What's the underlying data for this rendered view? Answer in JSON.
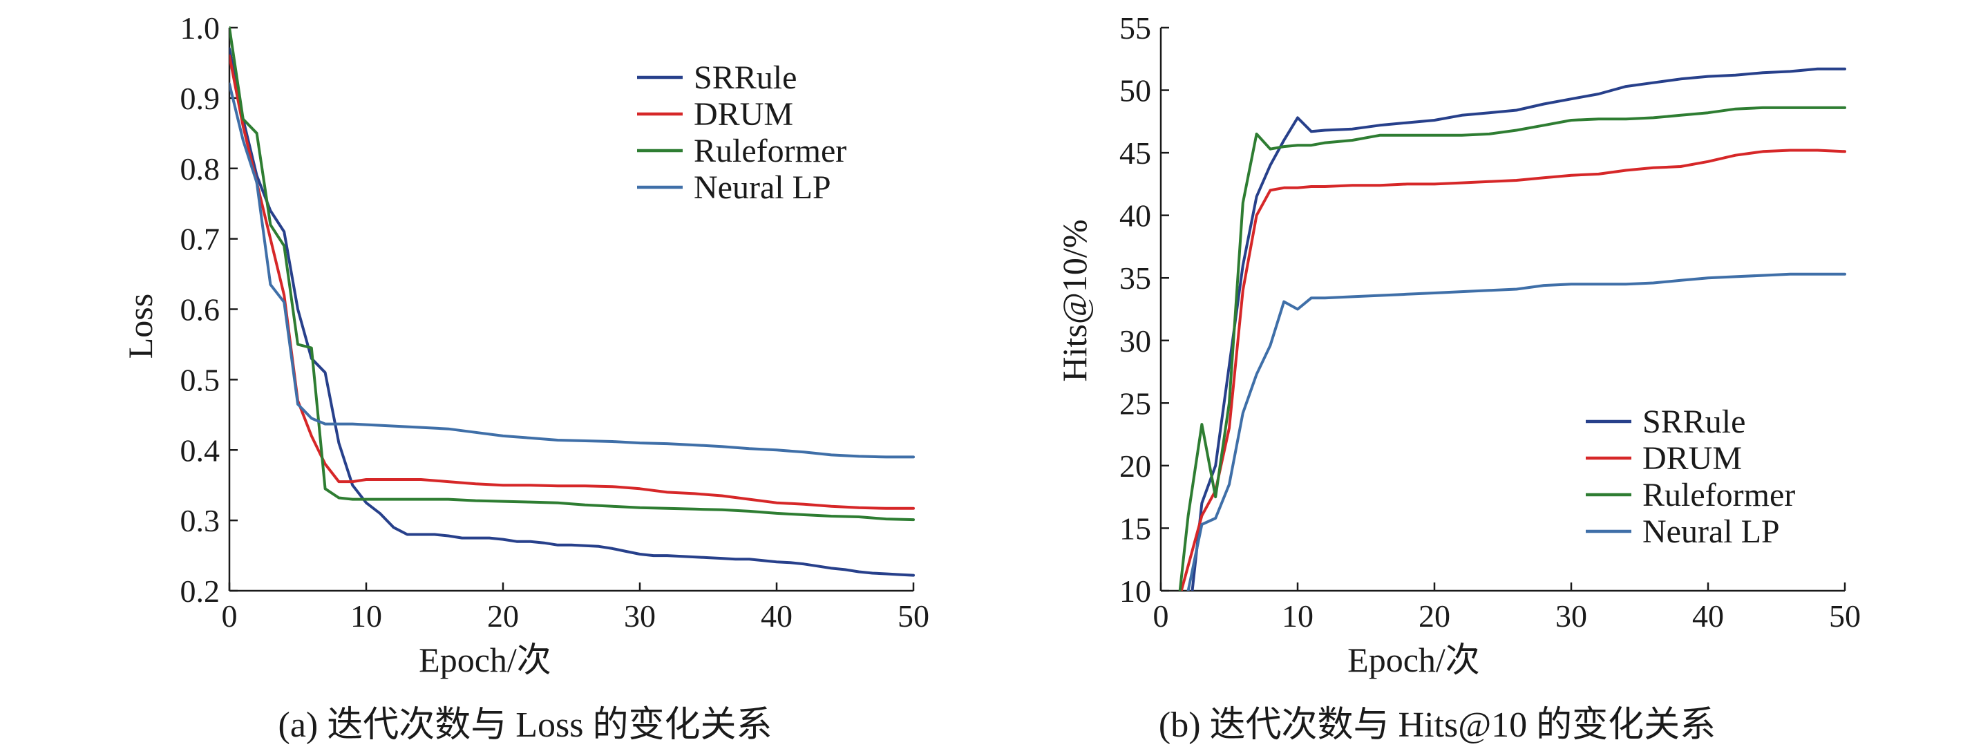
{
  "chart_data": [
    {
      "type": "line",
      "panel": "a",
      "title": "",
      "caption": "(a) 迭代次数与 Loss 的变化关系",
      "xlabel": "Epoch/次",
      "ylabel": "Loss",
      "xlim": [
        0,
        50
      ],
      "ylim": [
        0.2,
        1.0
      ],
      "xticks": [
        "0",
        "10",
        "20",
        "30",
        "40",
        "50"
      ],
      "yticks": [
        "0.2",
        "0.3",
        "0.4",
        "0.5",
        "0.6",
        "0.7",
        "0.8",
        "0.9",
        "1.0"
      ],
      "legend_position": "top-right",
      "grid": false,
      "series": [
        {
          "name": "SRRule",
          "color": "#27408b",
          "x": [
            0,
            1,
            2,
            3,
            4,
            5,
            6,
            7,
            8,
            9,
            10,
            11,
            12,
            13,
            14,
            15,
            16,
            17,
            18,
            19,
            20,
            21,
            22,
            23,
            24,
            25,
            26,
            27,
            28,
            29,
            30,
            31,
            32,
            33,
            34,
            35,
            36,
            37,
            38,
            39,
            40,
            41,
            42,
            43,
            44,
            45,
            46,
            47,
            48,
            49,
            50
          ],
          "y": [
            0.97,
            0.87,
            0.79,
            0.74,
            0.71,
            0.6,
            0.53,
            0.51,
            0.41,
            0.35,
            0.325,
            0.31,
            0.29,
            0.28,
            0.28,
            0.28,
            0.278,
            0.275,
            0.275,
            0.275,
            0.273,
            0.27,
            0.27,
            0.268,
            0.265,
            0.265,
            0.264,
            0.263,
            0.26,
            0.256,
            0.252,
            0.25,
            0.25,
            0.249,
            0.248,
            0.247,
            0.246,
            0.245,
            0.245,
            0.243,
            0.241,
            0.24,
            0.238,
            0.235,
            0.232,
            0.23,
            0.227,
            0.225,
            0.224,
            0.223,
            0.222
          ]
        },
        {
          "name": "DRUM",
          "color": "#d62728",
          "x": [
            0,
            1,
            2,
            3,
            4,
            5,
            6,
            7,
            8,
            9,
            10,
            12,
            14,
            16,
            18,
            20,
            22,
            24,
            26,
            28,
            30,
            32,
            34,
            36,
            38,
            40,
            42,
            44,
            46,
            48,
            50
          ],
          "y": [
            0.96,
            0.86,
            0.78,
            0.7,
            0.62,
            0.47,
            0.42,
            0.38,
            0.355,
            0.355,
            0.358,
            0.358,
            0.358,
            0.355,
            0.352,
            0.35,
            0.35,
            0.349,
            0.349,
            0.348,
            0.345,
            0.34,
            0.338,
            0.335,
            0.33,
            0.325,
            0.323,
            0.32,
            0.318,
            0.317,
            0.317
          ]
        },
        {
          "name": "Ruleformer",
          "color": "#2e7d32",
          "x": [
            0,
            1,
            2,
            3,
            4,
            5,
            6,
            7,
            8,
            9,
            10,
            12,
            14,
            16,
            18,
            20,
            22,
            24,
            26,
            28,
            30,
            32,
            34,
            36,
            38,
            40,
            42,
            44,
            46,
            48,
            50
          ],
          "y": [
            1.0,
            0.87,
            0.85,
            0.72,
            0.69,
            0.55,
            0.545,
            0.345,
            0.332,
            0.33,
            0.33,
            0.33,
            0.33,
            0.33,
            0.328,
            0.327,
            0.326,
            0.325,
            0.322,
            0.32,
            0.318,
            0.317,
            0.316,
            0.315,
            0.313,
            0.31,
            0.308,
            0.306,
            0.305,
            0.302,
            0.301
          ]
        },
        {
          "name": "Neural LP",
          "color": "#3f6fa8",
          "x": [
            0,
            1,
            2,
            3,
            4,
            5,
            6,
            7,
            8,
            9,
            10,
            12,
            14,
            16,
            18,
            20,
            22,
            24,
            26,
            28,
            30,
            32,
            34,
            36,
            38,
            40,
            42,
            44,
            46,
            48,
            50
          ],
          "y": [
            0.92,
            0.84,
            0.78,
            0.635,
            0.61,
            0.465,
            0.445,
            0.437,
            0.437,
            0.437,
            0.436,
            0.434,
            0.432,
            0.43,
            0.425,
            0.42,
            0.417,
            0.414,
            0.413,
            0.412,
            0.41,
            0.409,
            0.407,
            0.405,
            0.402,
            0.4,
            0.397,
            0.393,
            0.391,
            0.39,
            0.39
          ]
        }
      ]
    },
    {
      "type": "line",
      "panel": "b",
      "title": "",
      "caption": "(b) 迭代次数与 Hits@10 的变化关系",
      "xlabel": "Epoch/次",
      "ylabel": "Hits@10/%",
      "xlim": [
        0,
        50
      ],
      "ylim": [
        10,
        55
      ],
      "xticks": [
        "0",
        "10",
        "20",
        "30",
        "40",
        "50"
      ],
      "yticks": [
        "10",
        "15",
        "20",
        "25",
        "30",
        "35",
        "40",
        "45",
        "50",
        "55"
      ],
      "legend_position": "bottom-right",
      "grid": false,
      "series": [
        {
          "name": "SRRule",
          "color": "#27408b",
          "x": [
            2.3,
            3,
            4,
            5,
            6,
            7,
            8,
            9,
            10,
            11,
            12,
            14,
            16,
            18,
            20,
            22,
            24,
            26,
            28,
            30,
            32,
            34,
            36,
            38,
            40,
            42,
            44,
            46,
            48,
            50
          ],
          "y": [
            10,
            17,
            20,
            28,
            36,
            41.5,
            44,
            46,
            47.8,
            46.7,
            46.8,
            46.9,
            47.2,
            47.4,
            47.6,
            48.0,
            48.2,
            48.4,
            48.9,
            49.3,
            49.7,
            50.3,
            50.6,
            50.9,
            51.1,
            51.2,
            51.4,
            51.5,
            51.7,
            51.7
          ]
        },
        {
          "name": "DRUM",
          "color": "#d62728",
          "x": [
            1.5,
            2,
            3,
            4,
            5,
            6,
            7,
            8,
            9,
            10,
            11,
            12,
            14,
            16,
            18,
            20,
            22,
            24,
            26,
            28,
            30,
            32,
            34,
            36,
            38,
            40,
            42,
            44,
            46,
            48,
            50
          ],
          "y": [
            10,
            12,
            16,
            18,
            23,
            34,
            40,
            42,
            42.2,
            42.2,
            42.3,
            42.3,
            42.4,
            42.4,
            42.5,
            42.5,
            42.6,
            42.7,
            42.8,
            43.0,
            43.2,
            43.3,
            43.6,
            43.8,
            43.9,
            44.3,
            44.8,
            45.1,
            45.2,
            45.2,
            45.1
          ]
        },
        {
          "name": "Ruleformer",
          "color": "#2e7d32",
          "x": [
            1.4,
            2,
            3,
            4,
            5,
            6,
            7,
            8,
            9,
            10,
            11,
            12,
            14,
            16,
            18,
            20,
            22,
            24,
            26,
            28,
            30,
            32,
            34,
            36,
            38,
            40,
            42,
            44,
            46,
            48,
            50
          ],
          "y": [
            10,
            16,
            23.3,
            17.5,
            25,
            41,
            46.5,
            45.3,
            45.5,
            45.6,
            45.6,
            45.8,
            46.0,
            46.4,
            46.4,
            46.4,
            46.4,
            46.5,
            46.8,
            47.2,
            47.6,
            47.7,
            47.7,
            47.8,
            48.0,
            48.2,
            48.5,
            48.6,
            48.6,
            48.6,
            48.6
          ]
        },
        {
          "name": "Neural LP",
          "color": "#3f6fa8",
          "x": [
            2,
            3,
            4,
            5,
            6,
            7,
            8,
            9,
            10,
            11,
            12,
            14,
            16,
            18,
            20,
            22,
            24,
            26,
            28,
            30,
            32,
            34,
            36,
            38,
            40,
            42,
            44,
            46,
            48,
            50
          ],
          "y": [
            10,
            15.3,
            15.8,
            18.5,
            24.2,
            27.3,
            29.6,
            33.1,
            32.5,
            33.4,
            33.4,
            33.5,
            33.6,
            33.7,
            33.8,
            33.9,
            34.0,
            34.1,
            34.4,
            34.5,
            34.5,
            34.5,
            34.6,
            34.8,
            35.0,
            35.1,
            35.2,
            35.3,
            35.3,
            35.3
          ]
        }
      ]
    }
  ]
}
